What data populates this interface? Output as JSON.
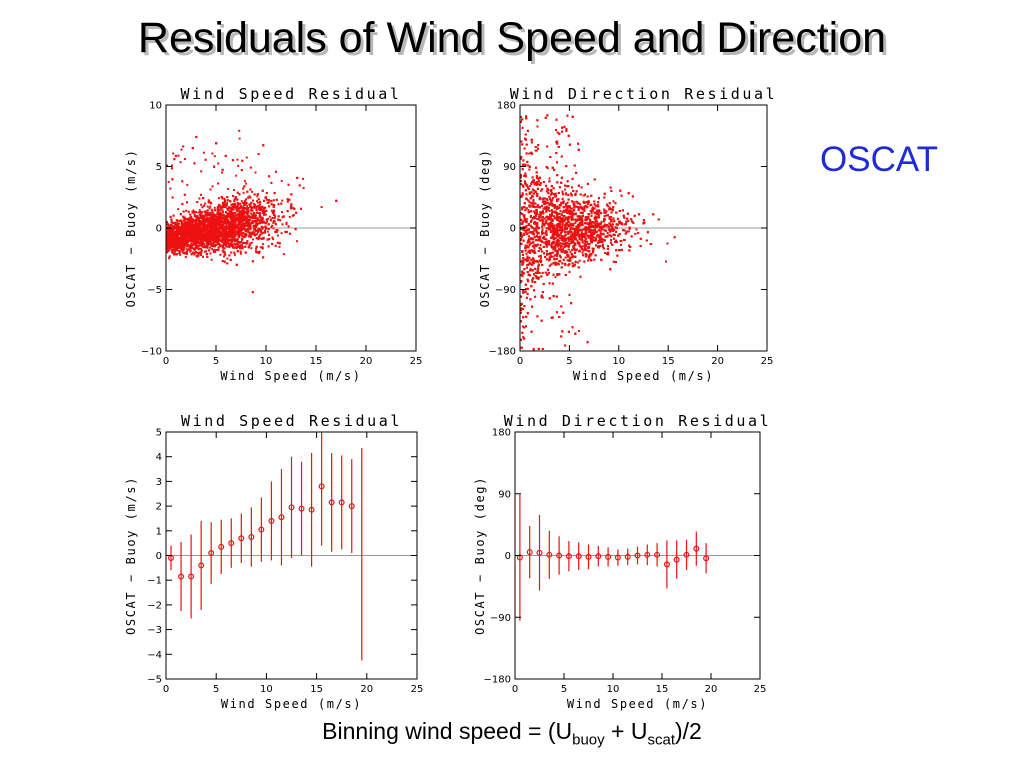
{
  "slide": {
    "title": "Residuals of Wind Speed and Direction",
    "label": "OSCAT",
    "caption_prefix": "Binning wind speed = (U",
    "caption_sub1": "buoy",
    "caption_mid": " + U",
    "caption_sub2": "scat",
    "caption_suffix": ")/2"
  },
  "colors": {
    "data": "#ee1111",
    "zero_line": "#9a9a9a",
    "axis": "#000000",
    "label": "#1f2bd8"
  },
  "chart_data": [
    {
      "type": "scatter",
      "title": "Wind Speed Residual",
      "xlabel": "Wind Speed (m/s)",
      "ylabel": "OSCAT − Buoy (m/s)",
      "xlim": [
        0,
        25
      ],
      "ylim": [
        -10,
        10
      ],
      "xticks": [
        0,
        5,
        10,
        15,
        20,
        25
      ],
      "yticks": [
        -10,
        -5,
        0,
        5,
        10
      ],
      "grid": false,
      "series": [
        {
          "points": []
        }
      ]
    },
    {
      "type": "scatter",
      "title": "Wind Direction Residual",
      "xlabel": "Wind Speed (m/s)",
      "ylabel": "OSCAT − Buoy (deg)",
      "xlim": [
        0,
        25
      ],
      "ylim": [
        -180,
        180
      ],
      "xticks": [
        0,
        5,
        10,
        15,
        20,
        25
      ],
      "yticks": [
        -180,
        -90,
        0,
        90,
        180
      ],
      "grid": false,
      "series": [
        {
          "points": []
        }
      ]
    },
    {
      "type": "errorbar",
      "title": "Wind Speed Residual",
      "xlabel": "Wind Speed (m/s)",
      "ylabel": "OSCAT − Buoy (m/s)",
      "xlim": [
        0,
        25
      ],
      "ylim": [
        -5,
        5
      ],
      "xticks": [
        0,
        5,
        10,
        15,
        20,
        25
      ],
      "yticks": [
        -5,
        -4,
        -3,
        -2,
        -1,
        0,
        1,
        2,
        3,
        4,
        5
      ],
      "grid": false,
      "series": [
        {
          "x": [
            0.5,
            1.5,
            2.5,
            3.5,
            4.5,
            5.5,
            6.5,
            7.5,
            8.5,
            9.5,
            10.5,
            11.5,
            12.5,
            13.5,
            14.5,
            15.5,
            16.5,
            17.5,
            18.5,
            19.5
          ],
          "mean": [
            -0.1,
            -0.85,
            -0.85,
            -0.4,
            0.1,
            0.35,
            0.5,
            0.7,
            0.75,
            1.05,
            1.4,
            1.55,
            1.95,
            1.9,
            1.85,
            2.8,
            2.15,
            2.15,
            2.0,
            null
          ],
          "std": [
            0.5,
            1.4,
            1.7,
            1.8,
            1.25,
            1.1,
            1.0,
            1.0,
            1.2,
            1.3,
            1.6,
            1.95,
            2.05,
            1.9,
            2.3,
            2.4,
            2.0,
            1.9,
            1.9,
            4.3
          ],
          "center": [
            null,
            null,
            null,
            null,
            null,
            null,
            null,
            null,
            null,
            null,
            null,
            null,
            null,
            null,
            null,
            null,
            null,
            null,
            null,
            0.05
          ]
        }
      ]
    },
    {
      "type": "errorbar",
      "title": "Wind Direction Residual",
      "xlabel": "Wind Speed (m/s)",
      "ylabel": "OSCAT − Buoy (deg)",
      "xlim": [
        0,
        25
      ],
      "ylim": [
        -180,
        180
      ],
      "xticks": [
        0,
        5,
        10,
        15,
        20,
        25
      ],
      "yticks": [
        -180,
        -90,
        0,
        90,
        180
      ],
      "grid": false,
      "series": [
        {
          "x": [
            0.5,
            1.5,
            2.5,
            3.5,
            4.5,
            5.5,
            6.5,
            7.5,
            8.5,
            9.5,
            10.5,
            11.5,
            12.5,
            13.5,
            14.5,
            15.5,
            16.5,
            17.5,
            18.5,
            19.5
          ],
          "mean": [
            -3,
            5,
            4,
            1,
            0,
            -1,
            -1,
            -2,
            -1,
            -2,
            -3,
            -2,
            0,
            1,
            1,
            -13,
            -6,
            1,
            10,
            -4
          ],
          "std": [
            92,
            38,
            55,
            35,
            28,
            22,
            20,
            18,
            15,
            14,
            12,
            12,
            13,
            15,
            17,
            35,
            28,
            22,
            25,
            22
          ]
        }
      ]
    }
  ]
}
